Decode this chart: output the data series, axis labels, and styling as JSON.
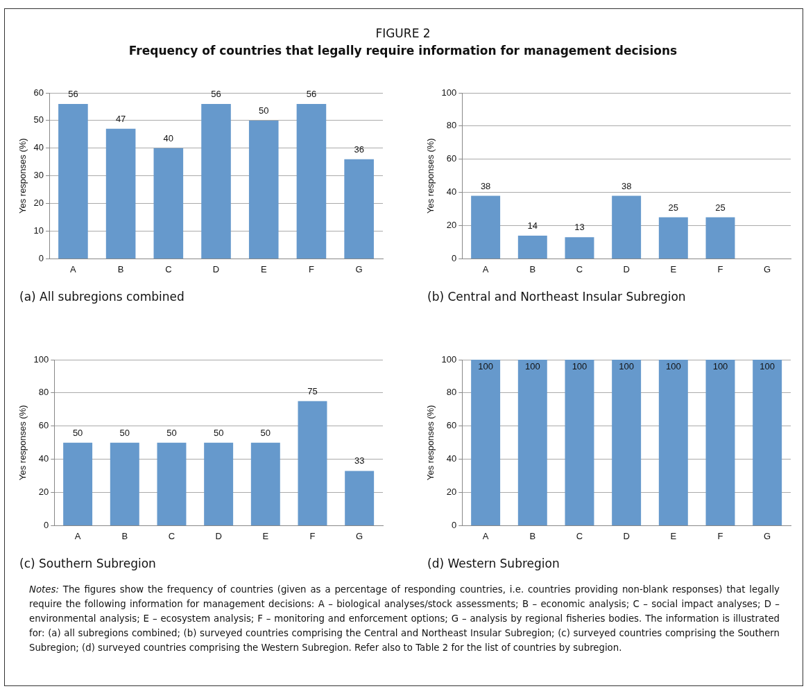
{
  "chart_data": [
    {
      "type": "bar",
      "title": "(a) All subregions combined",
      "annotations": [
        "FIGURE 2",
        "Frequency of countries that legally require information for management decisions"
      ],
      "ylabel": "Yes responses (%)",
      "categories": [
        "A",
        "B",
        "C",
        "D",
        "E",
        "F",
        "G"
      ],
      "values": [
        56,
        47,
        40,
        56,
        50,
        56,
        36
      ],
      "color": "#6699cc",
      "ylim": [
        0,
        60
      ],
      "yticks": [
        0,
        10,
        20,
        30,
        40,
        50,
        60
      ],
      "grid": "y",
      "data_labels": true
    },
    {
      "type": "bar",
      "title": "(b) Central and Northeast Insular Subregion",
      "ylabel": "Yes responses (%)",
      "categories": [
        "A",
        "B",
        "C",
        "D",
        "E",
        "F",
        "G"
      ],
      "values": [
        38,
        14,
        13,
        38,
        25,
        25,
        null
      ],
      "color": "#6699cc",
      "ylim": [
        0,
        100
      ],
      "yticks": [
        0,
        20,
        40,
        60,
        80,
        100
      ],
      "grid": "y",
      "data_labels": true
    },
    {
      "type": "bar",
      "title": "(c) Southern Subregion",
      "ylabel": "Yes responses (%)",
      "categories": [
        "A",
        "B",
        "C",
        "D",
        "E",
        "F",
        "G"
      ],
      "values": [
        50,
        50,
        50,
        50,
        50,
        75,
        33
      ],
      "color": "#6699cc",
      "ylim": [
        0,
        100
      ],
      "yticks": [
        0,
        20,
        40,
        60,
        80,
        100
      ],
      "grid": "y",
      "data_labels": true
    },
    {
      "type": "bar",
      "title": "(d) Western Subregion",
      "ylabel": "Yes responses (%)",
      "categories": [
        "A",
        "B",
        "C",
        "D",
        "E",
        "F",
        "G"
      ],
      "values": [
        100,
        100,
        100,
        100,
        100,
        100,
        100
      ],
      "color": "#6699cc",
      "ylim": [
        0,
        100
      ],
      "yticks": [
        0,
        20,
        40,
        60,
        80,
        100
      ],
      "grid": "y",
      "data_labels": true,
      "annotations": [
        "Notes: The figures show the frequency of countries (given as a percentage of responding countries, i.e. countries providing non-blank responses) that legally require the following information for management decisions: A – biological analyses/stock assessments; B – economic analysis; C – social impact analyses; D – environmental analysis; E – ecosystem analysis; F – monitoring and enforcement options; G – analysis by regional fisheries bodies. The information is illustrated for: (a) all subregions combined; (b) surveyed countries comprising the Central and Northeast Insular Subregion; (c) surveyed countries comprising the Southern Subregion; (d) surveyed countries comprising the Western Subregion. Refer also to Table 2 for the list of countries by subregion."
      ]
    }
  ]
}
